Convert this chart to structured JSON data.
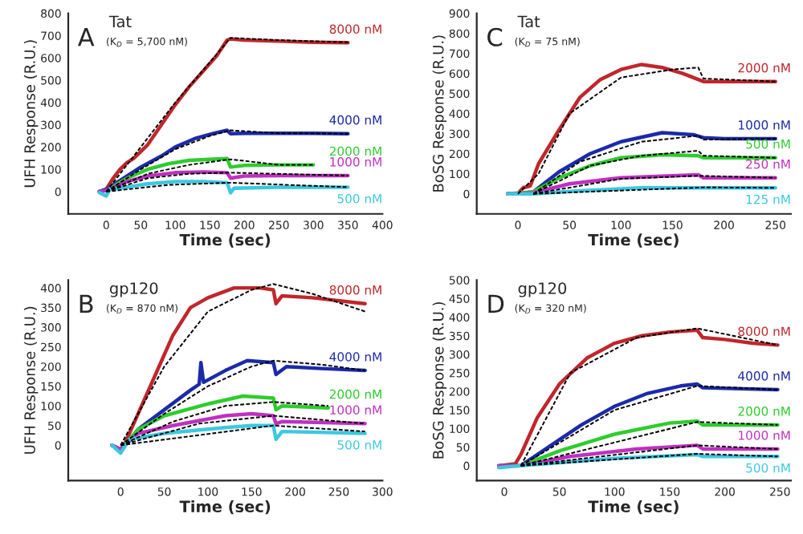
{
  "chart_data": [
    {
      "type": "line",
      "xlabel": "Time (sec)",
      "ylabel": "UFH Response (R.U.)",
      "annotations": [
        "A",
        "Tat",
        "(K$_{D}$ = 5,700 nM)"
      ],
      "xlim": [
        -55,
        400
      ],
      "xticks": [
        0,
        50,
        100,
        150,
        200,
        250,
        300,
        350,
        400
      ],
      "ylim": [
        -100,
        800
      ],
      "yticks": [
        0,
        100,
        200,
        300,
        400,
        500,
        600,
        700,
        800
      ],
      "grid": false,
      "legend": false,
      "marker": "none",
      "series": [
        {
          "name": "8000 nM",
          "color": "#c0262b",
          "line_style": "solid",
          "x": [
            -10,
            0,
            10,
            20,
            30,
            40,
            60,
            80,
            100,
            120,
            140,
            160,
            175,
            180,
            200,
            250,
            300,
            350
          ],
          "values": [
            0,
            10,
            60,
            100,
            130,
            150,
            210,
            300,
            390,
            470,
            540,
            610,
            680,
            685,
            680,
            675,
            670,
            668
          ]
        },
        {
          "color": "#000000",
          "line_style": "dashed",
          "x": [
            0,
            50,
            100,
            150,
            180,
            250,
            350
          ],
          "values": [
            0,
            200,
            400,
            580,
            690,
            680,
            670
          ]
        },
        {
          "name": "4000 nM",
          "color": "#1c2aa8",
          "line_style": "solid",
          "x": [
            -10,
            0,
            20,
            50,
            80,
            100,
            130,
            160,
            175,
            180,
            200,
            250,
            300,
            350
          ],
          "values": [
            0,
            10,
            50,
            110,
            160,
            200,
            240,
            265,
            275,
            260,
            262,
            262,
            262,
            260
          ]
        },
        {
          "color": "#000000",
          "line_style": "dashed",
          "x": [
            0,
            50,
            100,
            150,
            180,
            250,
            350
          ],
          "values": [
            0,
            100,
            190,
            250,
            275,
            262,
            260
          ]
        },
        {
          "name": "2000 nM",
          "color": "#2ecc2e",
          "line_style": "solid",
          "x": [
            -10,
            0,
            30,
            60,
            90,
            120,
            150,
            175,
            180,
            200,
            250,
            300
          ],
          "values": [
            0,
            5,
            60,
            100,
            125,
            140,
            145,
            148,
            110,
            118,
            120,
            120
          ]
        },
        {
          "color": "#000000",
          "line_style": "dashed",
          "x": [
            0,
            60,
            120,
            180,
            250,
            300
          ],
          "values": [
            0,
            80,
            120,
            145,
            120,
            120
          ]
        },
        {
          "name": "1000 nM",
          "color": "#c030c0",
          "line_style": "solid",
          "x": [
            -10,
            0,
            30,
            60,
            100,
            140,
            175,
            180,
            200,
            250,
            350
          ],
          "values": [
            0,
            5,
            45,
            70,
            85,
            88,
            85,
            60,
            70,
            72,
            72
          ]
        },
        {
          "color": "#000000",
          "line_style": "dashed",
          "x": [
            0,
            60,
            120,
            180,
            350
          ],
          "values": [
            0,
            60,
            80,
            85,
            72
          ]
        },
        {
          "name": "500 nM",
          "color": "#3cc8e0",
          "line_style": "solid",
          "x": [
            -10,
            0,
            5,
            30,
            60,
            100,
            140,
            175,
            180,
            185,
            250,
            350
          ],
          "values": [
            -5,
            -20,
            10,
            20,
            35,
            45,
            45,
            40,
            -5,
            15,
            20,
            20
          ]
        },
        {
          "color": "#000000",
          "line_style": "dashed",
          "x": [
            0,
            90,
            180,
            350
          ],
          "values": [
            0,
            30,
            40,
            20
          ]
        }
      ]
    },
    {
      "type": "line",
      "xlabel": "Time (sec)",
      "ylabel": "BoSG Response (R.U.)",
      "annotations": [
        "C",
        "Tat",
        "(K$_{D}$ = 75 nM)"
      ],
      "xlim": [
        -40,
        265
      ],
      "xticks": [
        0,
        50,
        100,
        150,
        200,
        250
      ],
      "ylim": [
        -100,
        900
      ],
      "yticks": [
        0,
        100,
        200,
        300,
        400,
        500,
        600,
        700,
        800,
        900
      ],
      "grid": false,
      "legend": false,
      "marker": "none",
      "series": [
        {
          "name": "2000 nM",
          "color": "#c0262b",
          "line_style": "solid",
          "x": [
            -10,
            0,
            5,
            12,
            20,
            40,
            60,
            80,
            100,
            120,
            140,
            160,
            180,
            200,
            250
          ],
          "values": [
            0,
            2,
            30,
            40,
            150,
            320,
            480,
            570,
            620,
            645,
            630,
            600,
            560,
            560,
            560
          ]
        },
        {
          "color": "#000000",
          "line_style": "dashed",
          "x": [
            0,
            20,
            50,
            100,
            150,
            175,
            180,
            250
          ],
          "values": [
            0,
            100,
            400,
            580,
            620,
            630,
            575,
            560
          ]
        },
        {
          "name": "1000 nM",
          "color": "#1c2aa8",
          "line_style": "solid",
          "x": [
            -10,
            0,
            15,
            40,
            70,
            100,
            140,
            170,
            180,
            200,
            250
          ],
          "values": [
            0,
            0,
            10,
            110,
            200,
            260,
            305,
            295,
            280,
            275,
            275
          ]
        },
        {
          "color": "#000000",
          "line_style": "dashed",
          "x": [
            15,
            60,
            120,
            175,
            180,
            250
          ],
          "values": [
            0,
            160,
            260,
            290,
            270,
            275
          ]
        },
        {
          "name": "500 nM",
          "color": "#2ecc2e",
          "line_style": "solid",
          "x": [
            -10,
            15,
            40,
            70,
            100,
            140,
            175,
            180,
            250
          ],
          "values": [
            0,
            10,
            80,
            140,
            180,
            195,
            190,
            180,
            180
          ]
        },
        {
          "color": "#000000",
          "line_style": "dashed",
          "x": [
            15,
            70,
            120,
            175,
            180,
            250
          ],
          "values": [
            0,
            140,
            190,
            215,
            190,
            180
          ]
        },
        {
          "name": "250 nM",
          "color": "#c030c0",
          "line_style": "solid",
          "x": [
            -10,
            15,
            50,
            100,
            150,
            175,
            180,
            250
          ],
          "values": [
            0,
            5,
            50,
            80,
            90,
            95,
            80,
            80
          ]
        },
        {
          "color": "#000000",
          "line_style": "dashed",
          "x": [
            15,
            100,
            175,
            250
          ],
          "values": [
            0,
            75,
            90,
            80
          ]
        },
        {
          "name": "125 nM",
          "color": "#3cc8e0",
          "line_style": "solid",
          "x": [
            -10,
            15,
            60,
            120,
            180,
            250
          ],
          "values": [
            0,
            0,
            15,
            30,
            30,
            30
          ]
        },
        {
          "color": "#000000",
          "line_style": "dashed",
          "x": [
            15,
            180,
            250
          ],
          "values": [
            0,
            32,
            30
          ]
        }
      ]
    },
    {
      "type": "line",
      "xlabel": "Time (sec)",
      "ylabel": "UFH Response (R.U.)",
      "annotations": [
        "B",
        "gp120",
        "(K$_{D}$ = 870 nM)"
      ],
      "xlim": [
        -60,
        300
      ],
      "xticks": [
        0,
        50,
        100,
        150,
        200,
        250,
        300
      ],
      "ylim": [
        -90,
        420
      ],
      "yticks": [
        0,
        50,
        100,
        150,
        200,
        250,
        300,
        350,
        400
      ],
      "grid": false,
      "legend": false,
      "marker": "none",
      "series": [
        {
          "name": "8000 nM",
          "color": "#c0262b",
          "line_style": "solid",
          "x": [
            -10,
            0,
            5,
            20,
            40,
            60,
            80,
            100,
            130,
            160,
            175,
            178,
            185,
            220,
            280
          ],
          "values": [
            0,
            -15,
            5,
            80,
            180,
            280,
            350,
            375,
            400,
            400,
            395,
            360,
            380,
            375,
            360
          ]
        },
        {
          "color": "#000000",
          "line_style": "dashed",
          "x": [
            0,
            50,
            100,
            150,
            175,
            220,
            280
          ],
          "values": [
            0,
            200,
            340,
            395,
            410,
            385,
            340
          ]
        },
        {
          "name": "4000 nM",
          "color": "#1c2aa8",
          "line_style": "solid",
          "x": [
            -10,
            0,
            20,
            50,
            80,
            90,
            92,
            95,
            120,
            145,
            175,
            178,
            190,
            230,
            280
          ],
          "values": [
            0,
            -15,
            40,
            90,
            140,
            155,
            210,
            160,
            190,
            215,
            210,
            180,
            200,
            195,
            190
          ]
        },
        {
          "color": "#000000",
          "line_style": "dashed",
          "x": [
            0,
            50,
            100,
            150,
            175,
            230,
            280
          ],
          "values": [
            0,
            80,
            150,
            200,
            215,
            205,
            190
          ]
        },
        {
          "name": "2000 nM",
          "color": "#2ecc2e",
          "line_style": "solid",
          "x": [
            -10,
            0,
            20,
            50,
            100,
            140,
            175,
            178,
            185,
            238
          ],
          "values": [
            0,
            -10,
            40,
            75,
            105,
            125,
            120,
            90,
            100,
            95
          ]
        },
        {
          "color": "#000000",
          "line_style": "dashed",
          "x": [
            0,
            60,
            120,
            175,
            238
          ],
          "values": [
            0,
            60,
            100,
            110,
            100
          ]
        },
        {
          "name": "1000 nM",
          "color": "#c030c0",
          "line_style": "solid",
          "x": [
            -10,
            0,
            20,
            60,
            120,
            150,
            175,
            178,
            185,
            280
          ],
          "values": [
            0,
            -10,
            30,
            50,
            75,
            80,
            75,
            55,
            60,
            55
          ]
        },
        {
          "color": "#000000",
          "line_style": "dashed",
          "x": [
            0,
            90,
            175,
            280
          ],
          "values": [
            0,
            55,
            75,
            55
          ]
        },
        {
          "name": "500 nM",
          "color": "#3cc8e0",
          "line_style": "solid",
          "x": [
            -10,
            0,
            10,
            50,
            120,
            150,
            175,
            178,
            185,
            280
          ],
          "values": [
            0,
            -20,
            15,
            30,
            45,
            50,
            50,
            15,
            35,
            30
          ]
        },
        {
          "color": "#000000",
          "line_style": "dashed",
          "x": [
            0,
            175,
            280
          ],
          "values": [
            0,
            50,
            35
          ]
        }
      ]
    },
    {
      "type": "line",
      "xlabel": "Time (sec)",
      "ylabel": "BoSG Response (R.U.)",
      "annotations": [
        "D",
        "gp120",
        "(K$_{D}$ = 320 nM)"
      ],
      "xlim": [
        -25,
        260
      ],
      "xticks": [
        0,
        50,
        100,
        150,
        200,
        250
      ],
      "ylim": [
        -40,
        500
      ],
      "yticks": [
        0,
        50,
        100,
        150,
        200,
        250,
        300,
        350,
        400,
        450,
        500
      ],
      "grid": false,
      "legend": false,
      "marker": "none",
      "series": [
        {
          "name": "8000 nM",
          "color": "#c0262b",
          "line_style": "solid",
          "x": [
            -5,
            10,
            15,
            30,
            50,
            75,
            100,
            125,
            150,
            175,
            180,
            200,
            225,
            248
          ],
          "values": [
            0,
            5,
            30,
            130,
            220,
            290,
            330,
            350,
            360,
            365,
            345,
            340,
            330,
            325
          ]
        },
        {
          "color": "#000000",
          "line_style": "dashed",
          "x": [
            15,
            60,
            120,
            175,
            248
          ],
          "values": [
            0,
            250,
            345,
            370,
            325
          ]
        },
        {
          "name": "4000 nM",
          "color": "#1c2aa8",
          "line_style": "solid",
          "x": [
            -5,
            15,
            40,
            70,
            100,
            130,
            160,
            175,
            180,
            248
          ],
          "values": [
            0,
            0,
            50,
            110,
            160,
            195,
            215,
            220,
            210,
            205
          ]
        },
        {
          "color": "#000000",
          "line_style": "dashed",
          "x": [
            15,
            100,
            175,
            248
          ],
          "values": [
            0,
            150,
            215,
            205
          ]
        },
        {
          "name": "2000 nM",
          "color": "#2ecc2e",
          "line_style": "solid",
          "x": [
            -5,
            15,
            50,
            100,
            150,
            175,
            180,
            248
          ],
          "values": [
            0,
            0,
            40,
            85,
            115,
            120,
            110,
            110
          ]
        },
        {
          "color": "#000000",
          "line_style": "dashed",
          "x": [
            15,
            175,
            248
          ],
          "values": [
            0,
            118,
            110
          ]
        },
        {
          "name": "1000 nM",
          "color": "#c030c0",
          "line_style": "solid",
          "x": [
            -5,
            15,
            60,
            120,
            175,
            180,
            248
          ],
          "values": [
            0,
            0,
            25,
            45,
            55,
            45,
            45
          ]
        },
        {
          "color": "#000000",
          "line_style": "dashed",
          "x": [
            15,
            175,
            248
          ],
          "values": [
            0,
            55,
            45
          ]
        },
        {
          "name": "500 nM",
          "color": "#3cc8e0",
          "line_style": "solid",
          "x": [
            -5,
            15,
            100,
            175,
            180,
            248
          ],
          "values": [
            -5,
            0,
            20,
            30,
            25,
            25
          ]
        },
        {
          "color": "#000000",
          "line_style": "dashed",
          "x": [
            15,
            175,
            248
          ],
          "values": [
            0,
            32,
            25
          ]
        }
      ]
    }
  ]
}
